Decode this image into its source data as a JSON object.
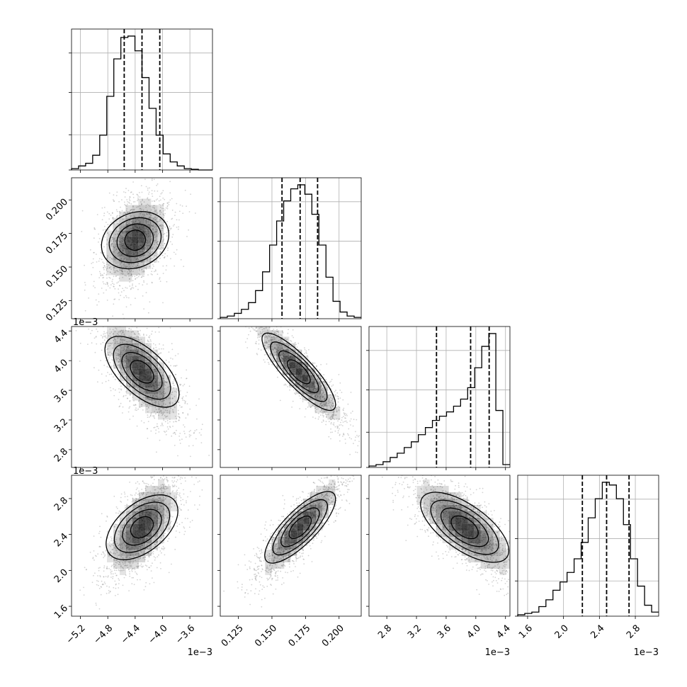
{
  "chart_data": {
    "type": "corner",
    "title": "",
    "n_params": 4,
    "axes": [
      {
        "label": "",
        "range": [
          -0.00533,
          -0.00327
        ],
        "ticks": [
          -5.2,
          -4.8,
          -4.4,
          -4.0,
          -3.6
        ],
        "tick_labels": [
          "−5.2",
          "−4.8",
          "−4.4",
          "−4.0",
          "−3.6"
        ],
        "offset_text": "1e−3"
      },
      {
        "label": "",
        "range": [
          0.1115,
          0.2165
        ],
        "ticks": [
          0.125,
          0.15,
          0.175,
          0.2
        ],
        "tick_labels": [
          "0.125",
          "0.150",
          "0.175",
          "0.200"
        ],
        "offset_text": ""
      },
      {
        "label": "",
        "range": [
          0.00256,
          0.00446
        ],
        "ticks": [
          2.8,
          3.2,
          3.6,
          4.0,
          4.4
        ],
        "tick_labels": [
          "2.8",
          "3.2",
          "3.6",
          "4.0",
          "4.4"
        ],
        "offset_text": "1e−3"
      },
      {
        "label": "",
        "range": [
          0.00149,
          0.00306
        ],
        "ticks": [
          1.6,
          2.0,
          2.4,
          2.8
        ],
        "tick_labels": [
          "1.6",
          "2.0",
          "2.4",
          "2.8"
        ],
        "offset_text": "1e−3"
      }
    ],
    "quantiles": [
      [
        -0.00456,
        -0.0043,
        -0.00404
      ],
      [
        0.1575,
        0.171,
        0.184
      ],
      [
        0.00347,
        0.00393,
        0.00418
      ],
      [
        0.00221,
        0.00248,
        0.00273
      ]
    ],
    "histograms": [
      {
        "bin_start": -0.00533,
        "bin_width": 0.000103,
        "counts": [
          0.01,
          0.03,
          0.05,
          0.11,
          0.26,
          0.55,
          0.83,
          0.99,
          1.0,
          0.89,
          0.69,
          0.46,
          0.26,
          0.12,
          0.06,
          0.03,
          0.01,
          0.005,
          0,
          0
        ]
      },
      {
        "bin_start": 0.1115,
        "bin_width": 0.00525,
        "counts": [
          0.01,
          0.02,
          0.04,
          0.07,
          0.12,
          0.21,
          0.35,
          0.55,
          0.73,
          0.88,
          0.97,
          1.0,
          0.93,
          0.78,
          0.55,
          0.31,
          0.13,
          0.05,
          0.02,
          0.01
        ]
      },
      {
        "bin_start": 0.00256,
        "bin_width": 9.5e-05,
        "counts": [
          0.01,
          0.02,
          0.04,
          0.07,
          0.1,
          0.14,
          0.18,
          0.23,
          0.28,
          0.33,
          0.36,
          0.39,
          0.43,
          0.48,
          0.56,
          0.7,
          0.85,
          0.94,
          0.4,
          0.02
        ]
      },
      {
        "bin_start": 0.00149,
        "bin_width": 7.85e-05,
        "counts": [
          0.01,
          0.02,
          0.03,
          0.07,
          0.12,
          0.19,
          0.25,
          0.32,
          0.42,
          0.54,
          0.72,
          0.86,
          0.98,
          0.96,
          0.86,
          0.67,
          0.42,
          0.22,
          0.08,
          0.03
        ]
      }
    ],
    "pairs": [
      {
        "x": 0,
        "y": 1,
        "mean": [
          -0.0044,
          0.17
        ],
        "sd": [
          0.00022,
          0.015
        ],
        "rho": 0.35
      },
      {
        "x": 0,
        "y": 2,
        "mean": [
          -0.0043,
          0.00385
        ],
        "sd": [
          0.00026,
          0.00032
        ],
        "rho": -0.7
      },
      {
        "x": 1,
        "y": 2,
        "mean": [
          0.17,
          0.00385
        ],
        "sd": [
          0.015,
          0.00032
        ],
        "rho": -0.9
      },
      {
        "x": 0,
        "y": 3,
        "mean": [
          -0.0043,
          0.00248
        ],
        "sd": [
          0.00024,
          0.00025
        ],
        "rho": 0.6
      },
      {
        "x": 1,
        "y": 3,
        "mean": [
          0.171,
          0.00248
        ],
        "sd": [
          0.014,
          0.00025
        ],
        "rho": 0.85
      },
      {
        "x": 2,
        "y": 3,
        "mean": [
          0.00385,
          0.00248
        ],
        "sd": [
          0.00032,
          0.00025
        ],
        "rho": -0.75
      }
    ],
    "colors": {
      "line": "#000000",
      "points": "#808080",
      "grid": "#b0b0b0",
      "density": "#000000"
    }
  }
}
